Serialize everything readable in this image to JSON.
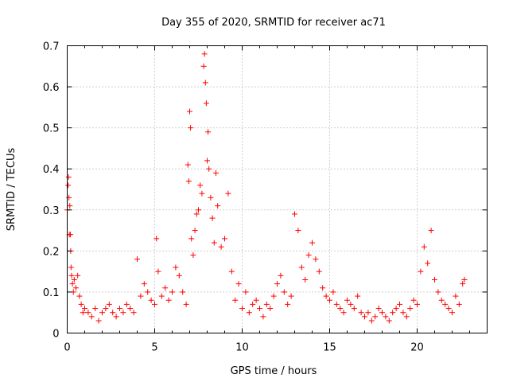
{
  "chart_data": {
    "type": "scatter",
    "title": "Day 355 of 2020, SRMTID for receiver ac71",
    "xlabel": "GPS time / hours",
    "ylabel": "SRMTID / TECUs",
    "xlim": [
      0,
      24
    ],
    "ylim": [
      0,
      0.7
    ],
    "xticks": [
      0,
      5,
      10,
      15,
      20
    ],
    "yticks": [
      0,
      0.1,
      0.2,
      0.3,
      0.4,
      0.5,
      0.6,
      0.7
    ],
    "xtick_labels": [
      "0",
      "5",
      "10",
      "15",
      "20"
    ],
    "ytick_labels": [
      "0",
      "0.1",
      "0.2",
      "0.3",
      "0.4",
      "0.5",
      "0.6",
      "0.7"
    ],
    "grid": true,
    "marker": "+",
    "color": "#ff0000",
    "series": [
      {
        "name": "SRMTID",
        "x": [
          0.0,
          0.05,
          0.08,
          0.1,
          0.12,
          0.15,
          0.18,
          0.2,
          0.22,
          0.25,
          0.3,
          0.35,
          0.4,
          0.5,
          0.6,
          0.7,
          0.8,
          0.9,
          1.0,
          1.2,
          1.4,
          1.6,
          1.8,
          2.0,
          2.2,
          2.4,
          2.6,
          2.8,
          3.0,
          3.2,
          3.4,
          3.6,
          3.8,
          4.0,
          4.2,
          4.4,
          4.6,
          4.8,
          5.0,
          5.1,
          5.2,
          5.4,
          5.6,
          5.8,
          6.0,
          6.2,
          6.4,
          6.6,
          6.8,
          6.9,
          6.95,
          7.0,
          7.05,
          7.1,
          7.2,
          7.3,
          7.4,
          7.5,
          7.6,
          7.7,
          7.8,
          7.85,
          7.9,
          7.95,
          8.0,
          8.05,
          8.1,
          8.2,
          8.3,
          8.4,
          8.5,
          8.6,
          8.8,
          9.0,
          9.2,
          9.4,
          9.6,
          9.8,
          10.0,
          10.2,
          10.4,
          10.6,
          10.8,
          11.0,
          11.2,
          11.4,
          11.6,
          11.8,
          12.0,
          12.2,
          12.4,
          12.6,
          12.8,
          13.0,
          13.2,
          13.4,
          13.6,
          13.8,
          14.0,
          14.2,
          14.4,
          14.6,
          14.8,
          15.0,
          15.2,
          15.4,
          15.6,
          15.8,
          16.0,
          16.2,
          16.4,
          16.6,
          16.8,
          17.0,
          17.2,
          17.4,
          17.6,
          17.8,
          18.0,
          18.2,
          18.4,
          18.6,
          18.8,
          19.0,
          19.2,
          19.4,
          19.6,
          19.8,
          20.0,
          20.2,
          20.4,
          20.6,
          20.8,
          21.0,
          21.2,
          21.4,
          21.6,
          21.8,
          22.0,
          22.2,
          22.4,
          22.6,
          22.7
        ],
        "y": [
          0.3,
          0.36,
          0.38,
          0.33,
          0.24,
          0.31,
          0.24,
          0.2,
          0.16,
          0.14,
          0.12,
          0.1,
          0.13,
          0.11,
          0.14,
          0.09,
          0.07,
          0.05,
          0.06,
          0.05,
          0.04,
          0.06,
          0.03,
          0.05,
          0.06,
          0.07,
          0.05,
          0.04,
          0.06,
          0.05,
          0.07,
          0.06,
          0.05,
          0.18,
          0.09,
          0.12,
          0.1,
          0.08,
          0.07,
          0.23,
          0.15,
          0.09,
          0.11,
          0.08,
          0.1,
          0.16,
          0.14,
          0.1,
          0.07,
          0.41,
          0.37,
          0.54,
          0.5,
          0.23,
          0.19,
          0.25,
          0.29,
          0.3,
          0.36,
          0.34,
          0.65,
          0.68,
          0.61,
          0.56,
          0.42,
          0.49,
          0.4,
          0.33,
          0.28,
          0.22,
          0.39,
          0.31,
          0.21,
          0.23,
          0.34,
          0.15,
          0.08,
          0.12,
          0.06,
          0.1,
          0.05,
          0.07,
          0.08,
          0.06,
          0.04,
          0.07,
          0.06,
          0.09,
          0.12,
          0.14,
          0.1,
          0.07,
          0.09,
          0.29,
          0.25,
          0.16,
          0.13,
          0.19,
          0.22,
          0.18,
          0.15,
          0.11,
          0.09,
          0.08,
          0.1,
          0.07,
          0.06,
          0.05,
          0.08,
          0.07,
          0.06,
          0.09,
          0.05,
          0.04,
          0.05,
          0.03,
          0.04,
          0.06,
          0.05,
          0.04,
          0.03,
          0.05,
          0.06,
          0.07,
          0.05,
          0.04,
          0.06,
          0.08,
          0.07,
          0.15,
          0.21,
          0.17,
          0.25,
          0.13,
          0.1,
          0.08,
          0.07,
          0.06,
          0.05,
          0.09,
          0.07,
          0.12,
          0.13
        ]
      }
    ]
  }
}
